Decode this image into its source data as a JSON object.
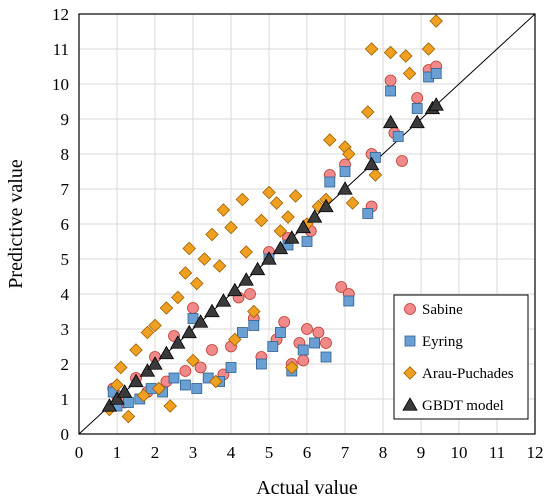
{
  "chart_data": {
    "type": "scatter",
    "title": "",
    "xlabel": "Actual value",
    "ylabel": "Predictive value",
    "xlim": [
      0,
      12
    ],
    "ylim": [
      0,
      12
    ],
    "xticks": [
      "0",
      "1",
      "2",
      "3",
      "4",
      "5",
      "6",
      "7",
      "8",
      "9",
      "10",
      "11",
      "12"
    ],
    "yticks": [
      "0",
      "1",
      "2",
      "3",
      "4",
      "5",
      "6",
      "7",
      "8",
      "9",
      "10",
      "11",
      "12"
    ],
    "grid": true,
    "reference_line": {
      "from": [
        0,
        0
      ],
      "to": [
        12,
        12
      ]
    },
    "legend_position": "bottom-right",
    "series": [
      {
        "name": "Sabine",
        "marker": "circle",
        "fill": "#f08a8a",
        "stroke": "#c0392b",
        "points": [
          [
            0.9,
            1.3
          ],
          [
            1.0,
            1.1
          ],
          [
            1.2,
            0.9
          ],
          [
            1.5,
            1.6
          ],
          [
            1.8,
            1.2
          ],
          [
            2.0,
            2.2
          ],
          [
            2.3,
            1.5
          ],
          [
            2.5,
            2.8
          ],
          [
            2.8,
            1.8
          ],
          [
            3.0,
            3.6
          ],
          [
            3.2,
            1.9
          ],
          [
            3.5,
            2.4
          ],
          [
            3.8,
            1.7
          ],
          [
            4.0,
            2.5
          ],
          [
            4.2,
            3.9
          ],
          [
            4.5,
            4.0
          ],
          [
            4.6,
            3.3
          ],
          [
            4.8,
            2.2
          ],
          [
            5.0,
            5.2
          ],
          [
            5.2,
            2.7
          ],
          [
            5.4,
            3.2
          ],
          [
            5.5,
            5.6
          ],
          [
            5.6,
            2.0
          ],
          [
            5.8,
            2.6
          ],
          [
            5.9,
            2.1
          ],
          [
            6.0,
            3.0
          ],
          [
            6.1,
            5.8
          ],
          [
            6.3,
            2.9
          ],
          [
            6.5,
            2.6
          ],
          [
            6.6,
            7.4
          ],
          [
            6.9,
            4.2
          ],
          [
            7.0,
            7.7
          ],
          [
            7.1,
            4.0
          ],
          [
            7.7,
            6.5
          ],
          [
            7.7,
            8.0
          ],
          [
            8.2,
            10.1
          ],
          [
            8.3,
            8.6
          ],
          [
            8.5,
            7.8
          ],
          [
            8.9,
            9.6
          ],
          [
            9.2,
            10.4
          ],
          [
            9.4,
            10.5
          ]
        ]
      },
      {
        "name": "Eyring",
        "marker": "square",
        "fill": "#6a9fd4",
        "stroke": "#2f5f8f",
        "points": [
          [
            0.9,
            1.2
          ],
          [
            1.0,
            0.8
          ],
          [
            1.3,
            0.9
          ],
          [
            1.6,
            1.0
          ],
          [
            1.9,
            1.3
          ],
          [
            2.2,
            1.2
          ],
          [
            2.5,
            1.6
          ],
          [
            2.8,
            1.4
          ],
          [
            3.0,
            3.3
          ],
          [
            3.1,
            1.3
          ],
          [
            3.4,
            1.6
          ],
          [
            3.7,
            1.5
          ],
          [
            4.0,
            1.9
          ],
          [
            4.3,
            2.9
          ],
          [
            4.6,
            3.1
          ],
          [
            4.8,
            2.0
          ],
          [
            5.0,
            5.0
          ],
          [
            5.1,
            2.5
          ],
          [
            5.3,
            2.9
          ],
          [
            5.5,
            5.4
          ],
          [
            5.6,
            1.8
          ],
          [
            5.9,
            2.4
          ],
          [
            6.0,
            5.5
          ],
          [
            6.2,
            2.6
          ],
          [
            6.5,
            2.2
          ],
          [
            6.6,
            7.2
          ],
          [
            7.0,
            7.5
          ],
          [
            7.1,
            3.8
          ],
          [
            7.6,
            6.3
          ],
          [
            7.8,
            7.9
          ],
          [
            8.2,
            9.8
          ],
          [
            8.4,
            8.5
          ],
          [
            8.9,
            9.3
          ],
          [
            9.2,
            10.2
          ],
          [
            9.4,
            10.3
          ]
        ]
      },
      {
        "name": "Arau-Puchades",
        "marker": "diamond",
        "fill": "#f0a020",
        "stroke": "#a06000",
        "points": [
          [
            0.8,
            0.7
          ],
          [
            1.0,
            1.4
          ],
          [
            1.1,
            1.9
          ],
          [
            1.3,
            0.5
          ],
          [
            1.5,
            2.4
          ],
          [
            1.7,
            1.1
          ],
          [
            1.8,
            2.9
          ],
          [
            2.0,
            3.1
          ],
          [
            2.1,
            1.3
          ],
          [
            2.3,
            3.6
          ],
          [
            2.4,
            0.8
          ],
          [
            2.6,
            3.9
          ],
          [
            2.8,
            4.6
          ],
          [
            2.9,
            5.3
          ],
          [
            3.0,
            2.1
          ],
          [
            3.1,
            4.3
          ],
          [
            3.3,
            5.0
          ],
          [
            3.5,
            5.7
          ],
          [
            3.6,
            1.5
          ],
          [
            3.7,
            4.8
          ],
          [
            3.8,
            6.4
          ],
          [
            4.0,
            5.9
          ],
          [
            4.1,
            2.7
          ],
          [
            4.3,
            6.7
          ],
          [
            4.4,
            5.2
          ],
          [
            4.6,
            3.5
          ],
          [
            4.8,
            6.1
          ],
          [
            5.0,
            6.9
          ],
          [
            5.2,
            6.6
          ],
          [
            5.3,
            5.8
          ],
          [
            5.5,
            6.2
          ],
          [
            5.6,
            1.9
          ],
          [
            5.7,
            6.8
          ],
          [
            6.0,
            6.0
          ],
          [
            6.3,
            6.5
          ],
          [
            6.5,
            6.7
          ],
          [
            6.6,
            8.4
          ],
          [
            7.0,
            8.2
          ],
          [
            7.1,
            8.0
          ],
          [
            7.2,
            6.6
          ],
          [
            7.6,
            9.2
          ],
          [
            7.7,
            11.0
          ],
          [
            7.8,
            7.4
          ],
          [
            8.2,
            10.9
          ],
          [
            8.6,
            10.8
          ],
          [
            8.7,
            10.3
          ],
          [
            9.2,
            11.0
          ],
          [
            9.4,
            11.8
          ]
        ]
      },
      {
        "name": "GBDT model",
        "marker": "triangle",
        "fill": "#3a3a3a",
        "stroke": "#000000",
        "points": [
          [
            0.8,
            0.8
          ],
          [
            1.0,
            1.0
          ],
          [
            1.2,
            1.2
          ],
          [
            1.5,
            1.5
          ],
          [
            1.8,
            1.8
          ],
          [
            2.0,
            2.0
          ],
          [
            2.3,
            2.3
          ],
          [
            2.6,
            2.6
          ],
          [
            2.9,
            2.9
          ],
          [
            3.2,
            3.2
          ],
          [
            3.5,
            3.5
          ],
          [
            3.8,
            3.8
          ],
          [
            4.1,
            4.1
          ],
          [
            4.4,
            4.4
          ],
          [
            4.7,
            4.7
          ],
          [
            5.0,
            5.0
          ],
          [
            5.3,
            5.3
          ],
          [
            5.6,
            5.6
          ],
          [
            5.9,
            5.9
          ],
          [
            6.2,
            6.2
          ],
          [
            6.5,
            6.5
          ],
          [
            7.0,
            7.0
          ],
          [
            7.7,
            7.7
          ],
          [
            8.2,
            8.9
          ],
          [
            8.9,
            8.9
          ],
          [
            9.3,
            9.3
          ],
          [
            9.4,
            9.4
          ]
        ]
      }
    ]
  }
}
